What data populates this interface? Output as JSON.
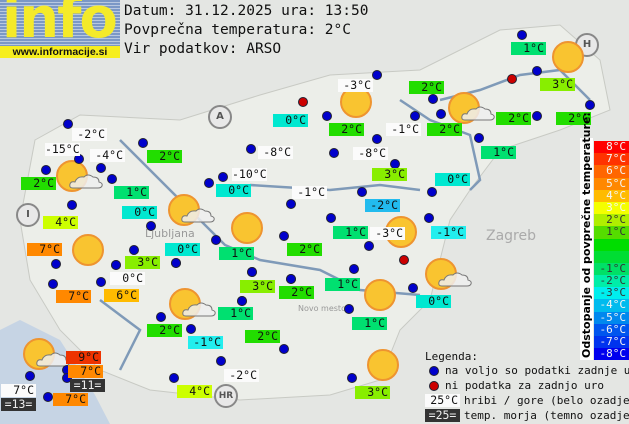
{
  "header": {
    "logo": "info",
    "website": "www.informacije.si",
    "date_line": "Datum: 31.12.2025 ura: 13:50",
    "avg_line": "Povprečna temperatura: 2°C",
    "source_line": "Vir podatkov: ARSO"
  },
  "countries": [
    "A",
    "I",
    "H",
    "HR"
  ],
  "cities": [
    "Ljubljana",
    "Zagreb",
    "Novo mesto"
  ],
  "labels": [
    {
      "text": "-2°C",
      "kind": "mountain"
    },
    {
      "text": "-15°C",
      "kind": "mountain"
    },
    {
      "text": "-4°C",
      "kind": "mountain"
    },
    {
      "text": "2°C",
      "kind": "valley",
      "color": "#22dd00"
    },
    {
      "text": "2°C",
      "kind": "valley",
      "color": "#22dd00"
    },
    {
      "text": "1°C",
      "kind": "valley",
      "color": "#00e070"
    },
    {
      "text": "0°C",
      "kind": "valley",
      "color": "#00e8d0"
    },
    {
      "text": "4°C",
      "kind": "valley",
      "color": "#ccff00"
    },
    {
      "text": "7°C",
      "kind": "valley",
      "color": "#ff8800"
    },
    {
      "text": "3°C",
      "kind": "valley",
      "color": "#88ee00"
    },
    {
      "text": "0°C",
      "kind": "mountain"
    },
    {
      "text": "7°C",
      "kind": "valley",
      "color": "#ff8800"
    },
    {
      "text": "6°C",
      "kind": "valley",
      "color": "#ffbb00"
    },
    {
      "text": "-8°C",
      "kind": "mountain"
    },
    {
      "text": "-10°C",
      "kind": "mountain"
    },
    {
      "text": "0°C",
      "kind": "valley",
      "color": "#00e8d0"
    },
    {
      "text": "0°C",
      "kind": "valley",
      "color": "#00e8d0"
    },
    {
      "text": "1°C",
      "kind": "valley",
      "color": "#00e070"
    },
    {
      "text": "0°C",
      "kind": "valley",
      "color": "#00e8d0"
    },
    {
      "text": "-1°C",
      "kind": "mountain"
    },
    {
      "text": "-3°C",
      "kind": "mountain"
    },
    {
      "text": "2°C",
      "kind": "valley",
      "color": "#22dd00"
    },
    {
      "text": "2°C",
      "kind": "valley",
      "color": "#22dd00"
    },
    {
      "text": "-1°C",
      "kind": "mountain"
    },
    {
      "text": "2°C",
      "kind": "valley",
      "color": "#22dd00"
    },
    {
      "text": "1°C",
      "kind": "valley",
      "color": "#00e070"
    },
    {
      "text": "3°C",
      "kind": "valley",
      "color": "#88ee00"
    },
    {
      "text": "2°C",
      "kind": "valley",
      "color": "#22dd00"
    },
    {
      "text": "2°C",
      "kind": "valley",
      "color": "#22dd00"
    },
    {
      "text": "-8°C",
      "kind": "mountain"
    },
    {
      "text": "1°C",
      "kind": "valley",
      "color": "#00e070"
    },
    {
      "text": "3°C",
      "kind": "valley",
      "color": "#88ee00"
    },
    {
      "text": "0°C",
      "kind": "valley",
      "color": "#00e8d0"
    },
    {
      "text": "-2°C",
      "kind": "valley",
      "color": "#22bbee"
    },
    {
      "text": "1°C",
      "kind": "valley",
      "color": "#00e070"
    },
    {
      "text": "-3°C",
      "kind": "mountain"
    },
    {
      "text": "-1°C",
      "kind": "valley",
      "color": "#22eeee"
    },
    {
      "text": "2°C",
      "kind": "valley",
      "color": "#22dd00"
    },
    {
      "text": "3°C",
      "kind": "valley",
      "color": "#88ee00"
    },
    {
      "text": "2°C",
      "kind": "valley",
      "color": "#22dd00"
    },
    {
      "text": "1°C",
      "kind": "valley",
      "color": "#00e070"
    },
    {
      "text": "1°C",
      "kind": "valley",
      "color": "#00e070"
    },
    {
      "text": "0°C",
      "kind": "valley",
      "color": "#00e8d0"
    },
    {
      "text": "1°C",
      "kind": "valley",
      "color": "#00e070"
    },
    {
      "text": "2°C",
      "kind": "valley",
      "color": "#22dd00"
    },
    {
      "text": "-1°C",
      "kind": "valley",
      "color": "#22eeee"
    },
    {
      "text": "2°C",
      "kind": "valley",
      "color": "#22dd00"
    },
    {
      "text": "9°C",
      "kind": "valley",
      "color": "#ee3300"
    },
    {
      "text": "7°C",
      "kind": "valley",
      "color": "#ff8800"
    },
    {
      "text": "=11=",
      "kind": "sea"
    },
    {
      "text": "7°C",
      "kind": "mountain"
    },
    {
      "text": "=13=",
      "kind": "sea"
    },
    {
      "text": "7°C",
      "kind": "valley",
      "color": "#ff8800"
    },
    {
      "text": "4°C",
      "kind": "valley",
      "color": "#ccff00"
    },
    {
      "text": "-2°C",
      "kind": "mountain"
    },
    {
      "text": "3°C",
      "kind": "valley",
      "color": "#88ee00"
    }
  ],
  "station_status": [
    "available",
    "available",
    "available",
    "available",
    "available",
    "available",
    "available",
    "available",
    "available",
    "available",
    "available",
    "available",
    "available",
    "available",
    "available",
    "available",
    "available",
    "available",
    "available",
    "available",
    "available",
    "available",
    "available",
    "available",
    "available",
    "no-data",
    "available",
    "available",
    "available",
    "available",
    "available",
    "available",
    "available",
    "no-data",
    "available",
    "available",
    "available",
    "available",
    "available",
    "available",
    "available",
    "available",
    "no-data",
    "available",
    "available",
    "available",
    "available",
    "available",
    "available",
    "available",
    "available",
    "available",
    "available",
    "available",
    "available",
    "available",
    "available",
    "available",
    "available",
    "available",
    "available",
    "available"
  ],
  "weather_icons": [
    "partly-cloudy",
    "partly-cloudy",
    "sunny",
    "sunny",
    "sunny",
    "partly-cloudy",
    "sunny",
    "sunny",
    "partly-cloudy",
    "sunny",
    "partly-cloudy",
    "partly-cloudy",
    "sunny"
  ],
  "scale": {
    "title": "Odstopanje od povprečne temperature:",
    "rows": [
      {
        "text": "8°C",
        "color": "#ff0000"
      },
      {
        "text": "7°C",
        "color": "#ff3300"
      },
      {
        "text": "6°C",
        "color": "#ff6600"
      },
      {
        "text": "5°C",
        "color": "#ff8800"
      },
      {
        "text": "4°C",
        "color": "#ffbb00"
      },
      {
        "text": "3°C",
        "color": "#f4ff00"
      },
      {
        "text": "2°C",
        "color": "#b0ee00"
      },
      {
        "text": "1°C",
        "color": "#55dd00"
      },
      {
        "text": "",
        "color": "#00dd00"
      },
      {
        "text": "",
        "color": "#00dd33"
      },
      {
        "text": "-1°C",
        "color": "#00e066"
      },
      {
        "text": "-2°C",
        "color": "#00eea8"
      },
      {
        "text": "-3°C",
        "color": "#00eeee"
      },
      {
        "text": "-4°C",
        "color": "#00bbee"
      },
      {
        "text": "-5°C",
        "color": "#0088ee"
      },
      {
        "text": "-6°C",
        "color": "#0055ee"
      },
      {
        "text": "-7°C",
        "color": "#0033ee"
      },
      {
        "text": "-8°C",
        "color": "#0000ee"
      }
    ]
  },
  "legend": {
    "title": "Legenda:",
    "available": "na voljo so podatki zadnje ure",
    "no_data": "ni podatka za zadnjo uro",
    "mountain_sample": "25°C",
    "mountain_text": "hribi / gore (belo ozadje)",
    "sea_sample": "=25=",
    "sea_text": "temp. morja (temno ozadje)"
  },
  "colors": {
    "available_dot": "#0000cc",
    "no_data_dot": "#cc0000",
    "sun": "#f9c430",
    "sea": "#c6d4e4"
  }
}
